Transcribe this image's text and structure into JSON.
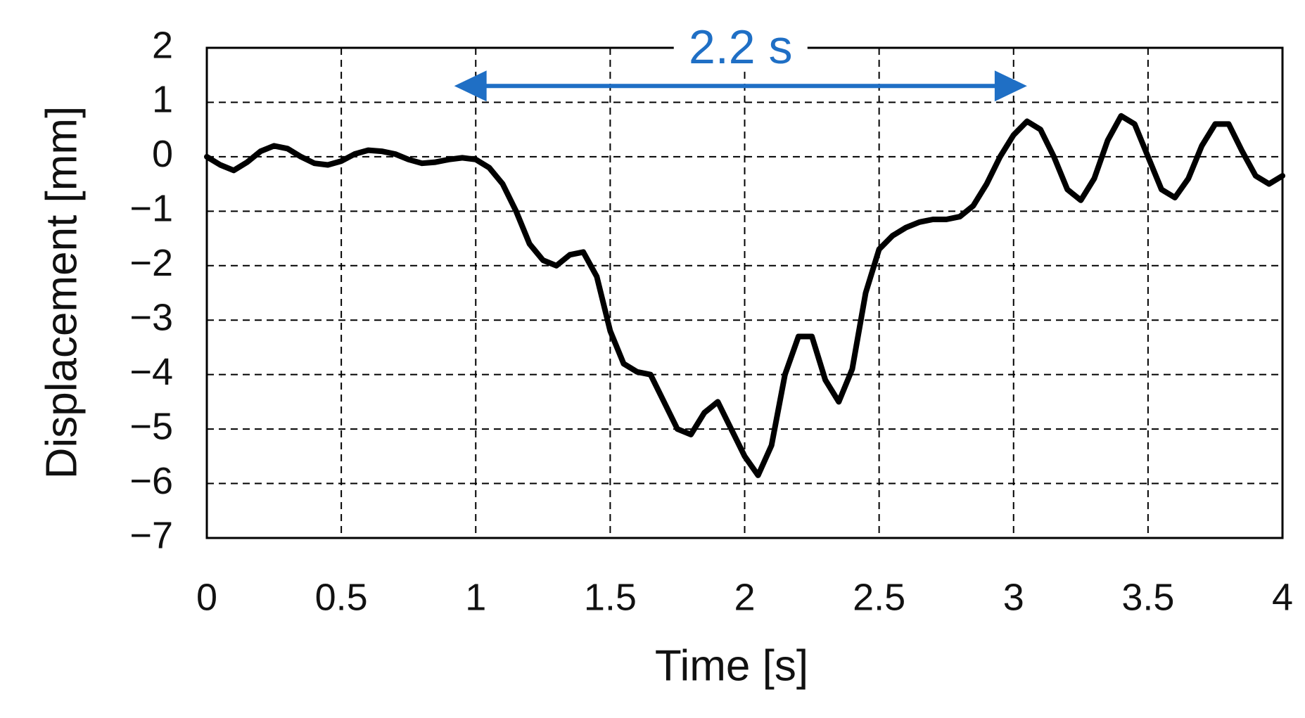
{
  "chart_data": {
    "type": "line",
    "x_label": "Time [s]",
    "y_label": "Displacement [mm]",
    "x": [
      0,
      0.05,
      0.1,
      0.15,
      0.2,
      0.25,
      0.3,
      0.35,
      0.4,
      0.45,
      0.5,
      0.55,
      0.6,
      0.65,
      0.7,
      0.75,
      0.8,
      0.85,
      0.9,
      0.95,
      1.0,
      1.05,
      1.1,
      1.15,
      1.2,
      1.25,
      1.3,
      1.35,
      1.4,
      1.45,
      1.5,
      1.55,
      1.6,
      1.65,
      1.7,
      1.75,
      1.8,
      1.85,
      1.9,
      1.95,
      2.0,
      2.05,
      2.1,
      2.15,
      2.2,
      2.25,
      2.3,
      2.35,
      2.4,
      2.45,
      2.5,
      2.55,
      2.6,
      2.65,
      2.7,
      2.75,
      2.8,
      2.85,
      2.9,
      2.95,
      3.0,
      3.05,
      3.1,
      3.15,
      3.2,
      3.25,
      3.3,
      3.35,
      3.4,
      3.45,
      3.5,
      3.55,
      3.6,
      3.65,
      3.7,
      3.75,
      3.8,
      3.85,
      3.9,
      3.95,
      4.0
    ],
    "series": [
      {
        "name": "Displacement",
        "color": "#000000",
        "values": [
          0,
          -0.15,
          -0.25,
          -0.1,
          0.1,
          0.2,
          0.15,
          0.0,
          -0.12,
          -0.15,
          -0.08,
          0.05,
          0.12,
          0.1,
          0.05,
          -0.05,
          -0.12,
          -0.1,
          -0.05,
          -0.02,
          -0.05,
          -0.2,
          -0.5,
          -1.0,
          -1.6,
          -1.9,
          -2.0,
          -1.8,
          -1.75,
          -2.2,
          -3.2,
          -3.8,
          -3.95,
          -4.0,
          -4.5,
          -5.0,
          -5.1,
          -4.7,
          -4.5,
          -5.0,
          -5.5,
          -5.85,
          -5.3,
          -4.0,
          -3.3,
          -3.3,
          -4.1,
          -4.5,
          -3.9,
          -2.5,
          -1.7,
          -1.45,
          -1.3,
          -1.2,
          -1.15,
          -1.15,
          -1.1,
          -0.9,
          -0.5,
          0.0,
          0.4,
          0.65,
          0.5,
          0.0,
          -0.6,
          -0.8,
          -0.4,
          0.3,
          0.75,
          0.6,
          0.0,
          -0.6,
          -0.75,
          -0.4,
          0.2,
          0.6,
          0.6,
          0.1,
          -0.35,
          -0.5,
          -0.35
        ]
      }
    ],
    "xlim": [
      0,
      4
    ],
    "xticks": [
      0,
      0.5,
      1,
      1.5,
      2,
      2.5,
      3,
      3.5,
      4
    ],
    "ylim": [
      -7,
      2
    ],
    "yticks": [
      {
        "value": -7,
        "label": "−7"
      },
      {
        "value": -6,
        "label": "−6"
      },
      {
        "value": -5,
        "label": "−5"
      },
      {
        "value": -4,
        "label": "−4"
      },
      {
        "value": -3,
        "label": "−3"
      },
      {
        "value": -2,
        "label": "−2"
      },
      {
        "value": -1,
        "label": "−1"
      },
      0,
      1,
      2
    ],
    "grid": true,
    "annotation": {
      "text": "2.2 s",
      "x": [
        0.92,
        3.05
      ],
      "y": 1.3,
      "color": "#1f6fc5"
    }
  }
}
